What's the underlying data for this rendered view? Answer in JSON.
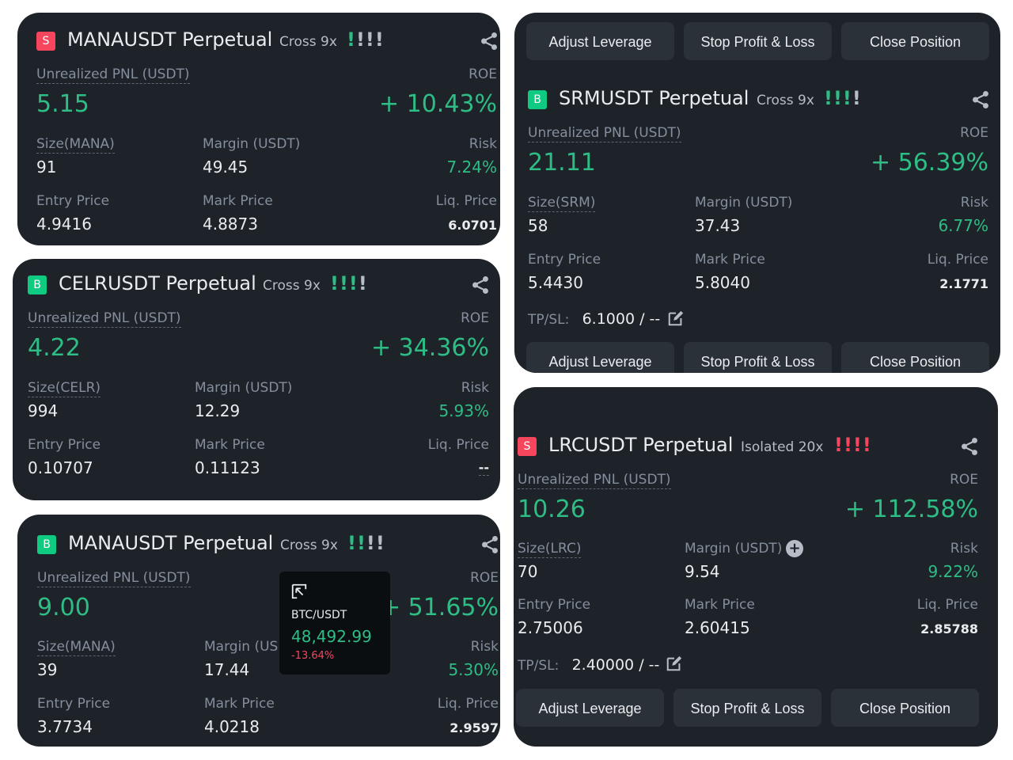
{
  "common": {
    "pnl_label": "Unrealized PNL (USDT)",
    "roe_label": "ROE",
    "margin_label": "Margin (USDT)",
    "risk_label": "Risk",
    "entry_label": "Entry Price",
    "mark_label": "Mark Price",
    "liq_label": "Liq. Price",
    "adjust_leverage": "Adjust Leverage",
    "stop_profit_loss": "Stop Profit & Loss",
    "close_position": "Close Position",
    "tpsl_label": "TP/SL:"
  },
  "cards": {
    "mana_short": {
      "side": "S",
      "symbol": "MANAUSDT Perpetual",
      "mode": "Cross 9x",
      "risk_bars": "!!!!",
      "pnl": "5.15",
      "roe": "+ 10.43%",
      "size_label": "Size(MANA)",
      "size": "91",
      "margin": "49.45",
      "risk": "7.24%",
      "entry": "4.9416",
      "mark": "4.8873",
      "liq": "6.0701"
    },
    "srm_long": {
      "side": "B",
      "symbol": "SRMUSDT Perpetual",
      "mode": "Cross 9x",
      "risk_bars": "!!!!",
      "pnl": "21.11",
      "roe": "+ 56.39%",
      "size_label": "Size(SRM)",
      "size": "58",
      "margin": "37.43",
      "risk": "6.77%",
      "entry": "5.4430",
      "mark": "5.8040",
      "liq": "2.1771",
      "tpsl": "6.1000 / --"
    },
    "celr_long": {
      "side": "B",
      "symbol": "CELRUSDT Perpetual",
      "mode": "Cross 9x",
      "risk_bars": "!!!!",
      "pnl": "4.22",
      "roe": "+ 34.36%",
      "size_label": "Size(CELR)",
      "size": "994",
      "margin": "12.29",
      "risk": "5.93%",
      "entry": "0.10707",
      "mark": "0.11123",
      "liq": "--"
    },
    "lrc_short": {
      "side": "S",
      "symbol": "LRCUSDT Perpetual",
      "mode": "Isolated 20x",
      "risk_bars": "!!!!",
      "pnl": "10.26",
      "roe": "+ 112.58%",
      "size_label": "Size(LRC)",
      "size": "70",
      "margin": "9.54",
      "risk": "9.22%",
      "entry": "2.75006",
      "mark": "2.60415",
      "liq": "2.85788",
      "tpsl": "2.40000 / --"
    },
    "mana_long": {
      "side": "B",
      "symbol": "MANAUSDT Perpetual",
      "mode": "Cross 9x",
      "risk_bars": "!!!!",
      "pnl": "9.00",
      "roe": "+ 51.65%",
      "size_label": "Size(MANA)",
      "size": "39",
      "margin": "17.44",
      "risk": "5.30%",
      "entry": "3.7734",
      "mark": "4.0218",
      "liq": "2.9597"
    }
  },
  "ticker_popup": {
    "pair": "BTC/USDT",
    "price": "48,492.99",
    "change": "-13.64%"
  },
  "colors": {
    "card_bg": "#1e2329",
    "green": "#2ebd85",
    "red": "#f6465d",
    "button_bg": "#2b3139"
  }
}
